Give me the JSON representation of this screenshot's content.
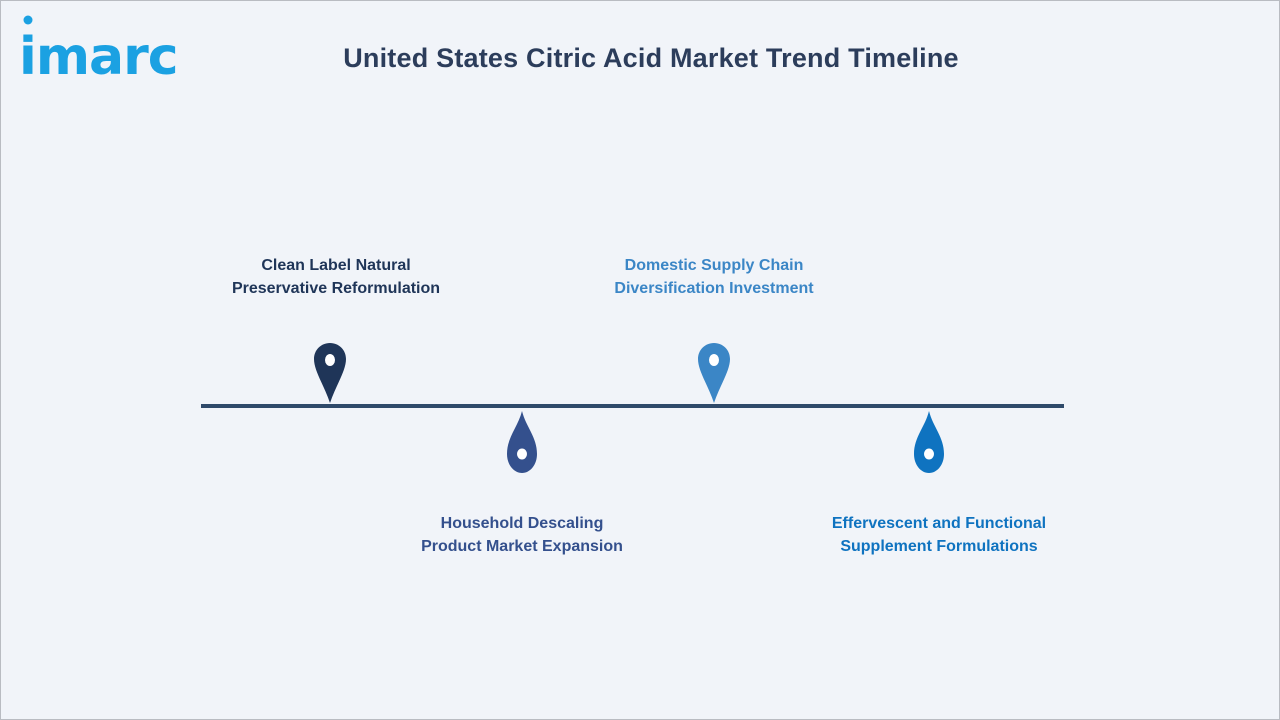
{
  "logo": {
    "text": "imarc",
    "color": "#1ba1e2"
  },
  "title": "United States Citric Acid Market Trend Timeline",
  "timeline": {
    "line_color": "#2f4a6a",
    "events": [
      {
        "line1": "Clean Label Natural",
        "line2": "Preservative Reformulation",
        "color": "#1f3558",
        "position": "above",
        "marker": "map-pin-icon"
      },
      {
        "line1": "Household Descaling",
        "line2": "Product Market Expansion",
        "color": "#34508d",
        "position": "below",
        "marker": "droplet-icon"
      },
      {
        "line1": "Domestic Supply Chain",
        "line2": "Diversification Investment",
        "color": "#3b86c6",
        "position": "above",
        "marker": "map-pin-icon"
      },
      {
        "line1": "Effervescent and Functional",
        "line2": "Supplement Formulations",
        "color": "#0f73c0",
        "position": "below",
        "marker": "droplet-icon"
      }
    ]
  }
}
